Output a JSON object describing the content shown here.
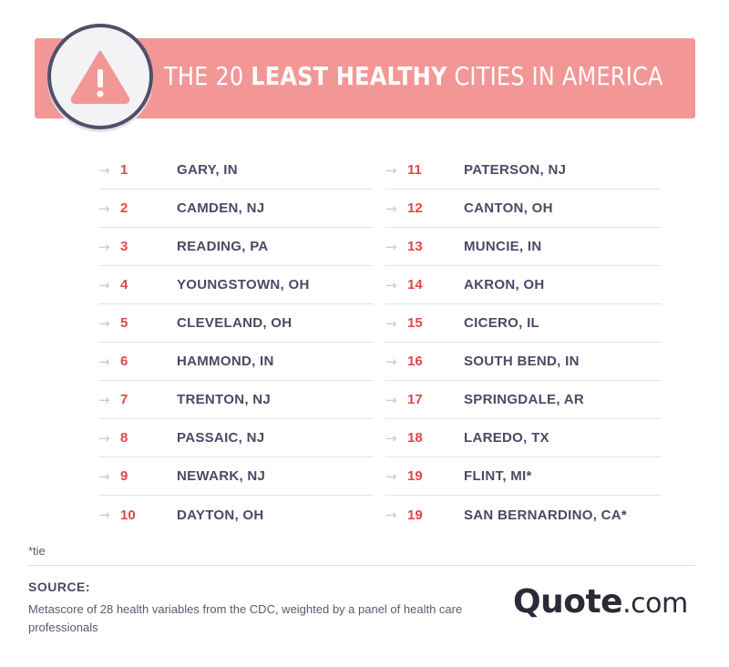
{
  "title": {
    "prefix": "THE 20 ",
    "bold": "LEAST HEALTHY",
    "suffix": " CITIES IN AMERICA"
  },
  "arrow_glyph": "→",
  "left_column": [
    {
      "rank": "1",
      "city": "GARY, IN"
    },
    {
      "rank": "2",
      "city": "CAMDEN, NJ"
    },
    {
      "rank": "3",
      "city": "READING, PA"
    },
    {
      "rank": "4",
      "city": "YOUNGSTOWN, OH"
    },
    {
      "rank": "5",
      "city": "CLEVELAND, OH"
    },
    {
      "rank": "6",
      "city": "HAMMOND, IN"
    },
    {
      "rank": "7",
      "city": "TRENTON, NJ"
    },
    {
      "rank": "8",
      "city": "PASSAIC, NJ"
    },
    {
      "rank": "9",
      "city": "NEWARK, NJ"
    },
    {
      "rank": "10",
      "city": "DAYTON, OH"
    }
  ],
  "right_column": [
    {
      "rank": "11",
      "city": "PATERSON, NJ"
    },
    {
      "rank": "12",
      "city": "CANTON, OH"
    },
    {
      "rank": "13",
      "city": "MUNCIE, IN"
    },
    {
      "rank": "14",
      "city": "AKRON, OH"
    },
    {
      "rank": "15",
      "city": "CICERO, IL"
    },
    {
      "rank": "16",
      "city": "SOUTH BEND, IN"
    },
    {
      "rank": "17",
      "city": "SPRINGDALE, AR"
    },
    {
      "rank": "18",
      "city": "LAREDO, TX"
    },
    {
      "rank": "19",
      "city": "FLINT, MI*"
    },
    {
      "rank": "19",
      "city": "SAN BERNARDINO, CA*"
    }
  ],
  "footnote": "*tie",
  "source": {
    "label": "SOURCE:",
    "text": "Metascore of 28 health variables from the CDC, weighted by a panel of health care professionals"
  },
  "logo": {
    "main": "Quote",
    "domain": ".com"
  },
  "colors": {
    "banner": "#f39796",
    "rank": "#e0474c",
    "city": "#4b4a66",
    "warning_icon": "#f39796"
  },
  "icons": {
    "badge": "warning-triangle-icon",
    "row": "arrow-right-icon"
  }
}
